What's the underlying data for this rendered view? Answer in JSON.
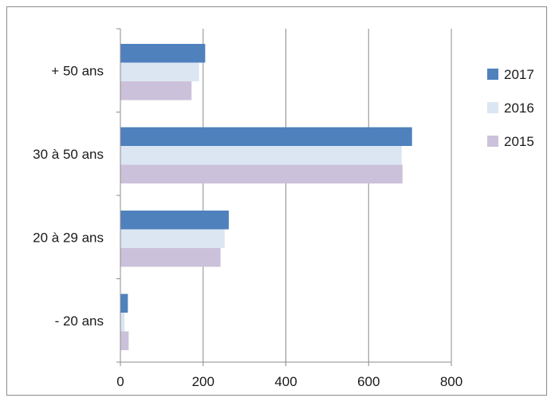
{
  "chart_data": {
    "type": "bar",
    "orientation": "horizontal",
    "categories": [
      "+ 50 ans",
      "30 à 50 ans",
      "20 à 29 ans",
      "- 20 ans"
    ],
    "series": [
      {
        "name": "2017",
        "color": "#4f81bd",
        "values": [
          205,
          705,
          262,
          18
        ]
      },
      {
        "name": "2016",
        "color": "#dce6f2",
        "values": [
          190,
          680,
          252,
          10
        ]
      },
      {
        "name": "2015",
        "color": "#ccc1da",
        "values": [
          172,
          682,
          242,
          20
        ]
      }
    ],
    "xlim": [
      0,
      800
    ],
    "xticks": [
      0,
      200,
      400,
      600,
      800
    ],
    "grid": "vertical major gridlines",
    "legend_position": "right"
  }
}
